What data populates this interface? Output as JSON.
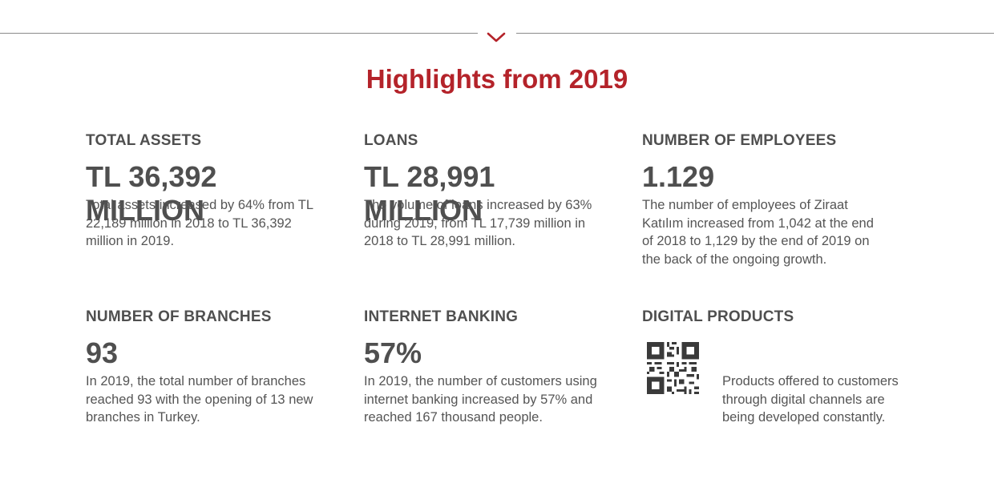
{
  "title": "Highlights from 2019",
  "colors": {
    "accent": "#b4232a",
    "text": "#4f4f4f",
    "divider": "#8a8a8a"
  },
  "icons": {
    "divider_chevron": "chevron-down-icon",
    "digital_products": "qr-code-icon"
  },
  "highlights": [
    {
      "label": "TOTAL ASSETS",
      "value": "TL 36,392 MILLION",
      "desc": "Total assets increased by 64% from TL 22,189 million in 2018 to TL 36,392 million in 2019."
    },
    {
      "label": "LOANS",
      "value": "TL 28,991 MILLION",
      "desc": "The volume of loans increased by 63% during 2019, from TL 17,739 million in 2018 to TL 28,991 million."
    },
    {
      "label": "NUMBER OF EMPLOYEES",
      "value": "1.129",
      "desc": "The number of employees of Ziraat Katılım increased from 1,042 at the end of 2018 to 1,129 by the end of 2019 on the back of the ongoing growth."
    },
    {
      "label": "NUMBER OF BRANCHES",
      "value": "93",
      "desc": "In 2019, the total number of branches reached 93 with the opening of 13 new branches in Turkey."
    },
    {
      "label": "INTERNET BANKING",
      "value": "57%",
      "desc": "In 2019, the number of customers using internet banking increased by 57% and reached 167 thousand people."
    },
    {
      "label": "DIGITAL PRODUCTS",
      "desc": "Products offered to customers through digital channels are being developed constantly."
    }
  ]
}
